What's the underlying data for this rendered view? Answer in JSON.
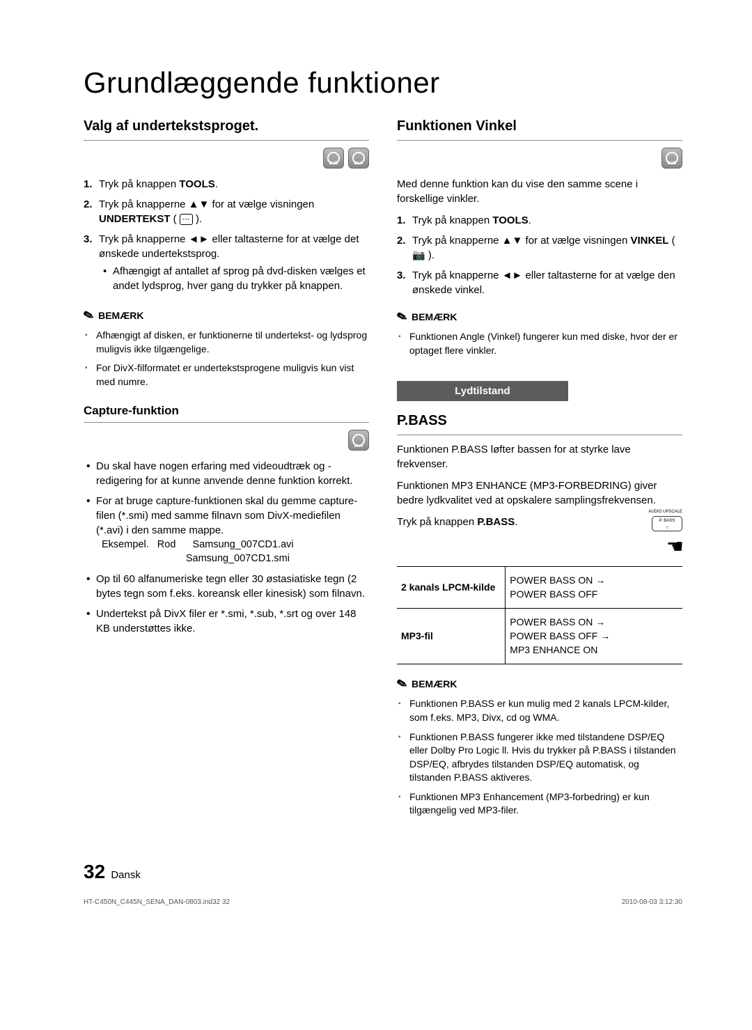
{
  "page_title": "Grundlæggende funktioner",
  "left": {
    "heading": "Valg af undertekstsproget.",
    "badges": [
      "DVD",
      "DivX"
    ],
    "steps": [
      {
        "n": "1.",
        "html": "Tryk på knappen <b>TOOLS</b>."
      },
      {
        "n": "2.",
        "html": "Tryk på knapperne ▲▼ for at vælge visningen <b>UNDERTEKST</b> ( <span class='glyph-box'>⋯</span> )."
      },
      {
        "n": "3.",
        "html": "Tryk på knapperne ◄► eller taltasterne for at vælge det ønskede undertekstsprog.",
        "sub": "Afhængigt af antallet af sprog på dvd-disken vælges et andet lydsprog, hver gang du trykker på knappen."
      }
    ],
    "note_label": "BEMÆRK",
    "notes": [
      "Afhængigt af disken, er funktionerne til undertekst- og lydsprog muligvis ikke tilgængelige.",
      "For DivX-filformatet er undertekstsprogene muligvis kun vist med numre."
    ],
    "capture_heading": "Capture-funktion",
    "capture_badge": "DivX",
    "capture_bullets": [
      "Du skal have nogen erfaring med videoudtræk og -redigering for at kunne anvende denne funktion korrekt.",
      "For at bruge capture-funktionen skal du gemme capture-filen (*.smi) med samme filnavn som DivX-mediefilen (*.avi) i den samme mappe.",
      "Op til 60 alfanumeriske tegn eller 30 østasiatiske tegn (2 bytes tegn som f.eks. koreansk eller kinesisk) som filnavn.",
      "Undertekst på DivX filer er *.smi, *.sub, *.srt og over 148 KB understøttes ikke."
    ],
    "example_lines": [
      "Eksempel.   Rod      Samsung_007CD1.avi",
      "                              Samsung_007CD1.smi"
    ]
  },
  "right": {
    "heading": "Funktionen Vinkel",
    "badges": [
      "DVD"
    ],
    "intro": "Med denne funktion kan du vise den samme scene i forskellige vinkler.",
    "steps": [
      {
        "n": "1.",
        "html": "Tryk på knappen <b>TOOLS</b>."
      },
      {
        "n": "2.",
        "html": "Tryk på knapperne ▲▼ for at vælge visningen <b>VINKEL</b> ( <span class='glyph'>📷</span> )."
      },
      {
        "n": "3.",
        "html": "Tryk på knapperne ◄► eller taltasterne for at vælge den ønskede vinkel."
      }
    ],
    "note_label": "BEMÆRK",
    "notes": [
      "Funktionen Angle (Vinkel) fungerer kun med diske, hvor der er optaget flere vinkler."
    ],
    "tab": "Lydtilstand",
    "pbass_heading": "P.BASS",
    "pbass_desc1": "Funktionen P.BASS løfter bassen for at styrke lave frekvenser.",
    "pbass_desc2": "Funktionen MP3 ENHANCE (MP3-FORBEDRING) giver bedre lydkvalitet ved at opskalere samplingsfrekvensen.",
    "pbass_press_html": "Tryk på knappen <b>P.BASS</b>.",
    "button_top": "AUDIO UPSCALE",
    "button_label": "P. BASS",
    "table": [
      {
        "k": "2 kanals LPCM-kilde",
        "v": "POWER BASS ON →<br>POWER BASS OFF"
      },
      {
        "k": "MP3-fil",
        "v": "POWER BASS ON →<br>POWER BASS OFF →<br>MP3 ENHANCE ON"
      }
    ],
    "notes2": [
      "Funktionen P.BASS er kun mulig med 2 kanals LPCM-kilder, som f.eks. MP3, Divx, cd og WMA.",
      "Funktionen P.BASS fungerer ikke med tilstandene DSP/EQ eller Dolby Pro Logic ll. Hvis du trykker på P.BASS i tilstanden DSP/EQ, afbrydes tilstanden DSP/EQ automatisk, og tilstanden P.BASS aktiveres.",
      "Funktionen MP3 Enhancement (MP3-forbedring) er kun tilgængelig ved MP3-filer."
    ]
  },
  "footer": {
    "page": "32",
    "lang": "Dansk",
    "meta_left": "HT-C450N_C445N_SENA_DAN-0803.ind32   32",
    "meta_right": "2010-08-03   3:12:30"
  }
}
